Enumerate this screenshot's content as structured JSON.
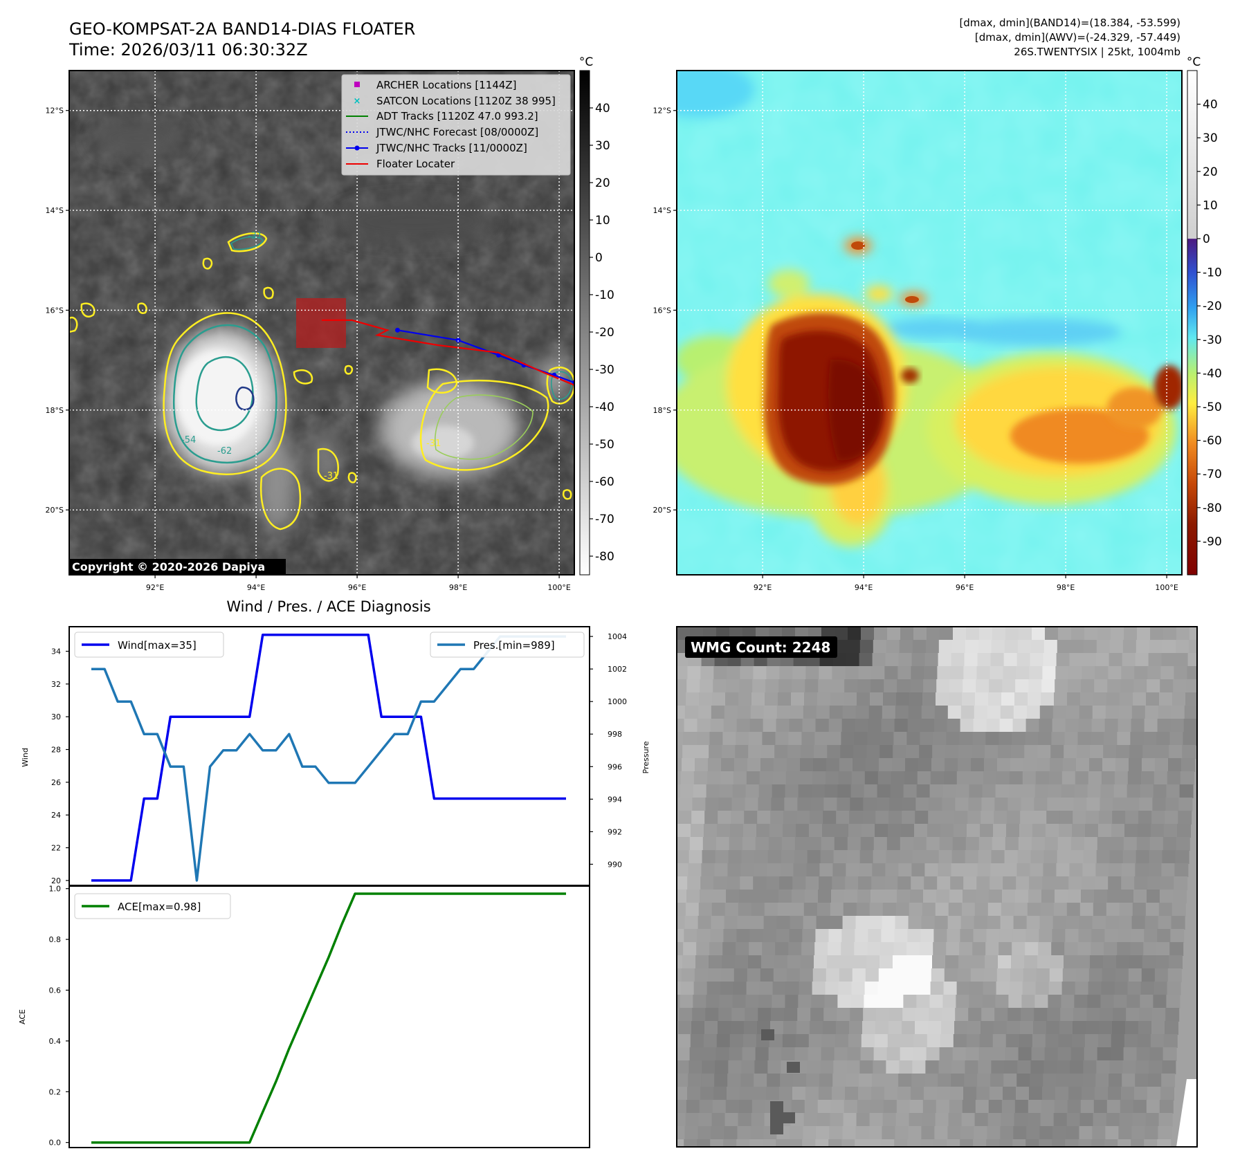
{
  "header": {
    "title_line1": "GEO-KOMPSAT-2A BAND14-DIAS FLOATER",
    "title_line2": "Time: 2026/03/11 06:30:32Z",
    "info_line1": "[dmax, dmin](BAND14)=(18.384, -53.599)",
    "info_line2": "[dmax, dmin](AWV)=(-24.329, -57.449)",
    "info_line3": "26S.TWENTYSIX | 25kt, 1004mb"
  },
  "colors": {
    "wind": "#0000ee",
    "pressure": "#1f77b4",
    "ace": "#008000",
    "floater": "#ee0000",
    "archer": "#bf00bf",
    "satcon": "#00bfbf",
    "contour_yellow": "#ffee22",
    "contour_teal": "#2a9d8f"
  },
  "ir_map": {
    "unit": "°C",
    "lat_labels": [
      "12°S",
      "14°S",
      "16°S",
      "18°S",
      "20°S"
    ],
    "lon_labels": [
      "92°E",
      "94°E",
      "96°E",
      "98°E",
      "100°E"
    ],
    "lat_range": [
      -21.3,
      -11.2
    ],
    "lon_range": [
      90.3,
      100.3
    ],
    "colorbar_ticks": [
      40,
      30,
      20,
      10,
      0,
      -10,
      -20,
      -30,
      -40,
      -50,
      -60,
      -70,
      -80
    ],
    "colorbar_range": [
      -85,
      50
    ],
    "copyright": "Copyright © 2020-2026 Dapiya",
    "contour_labels": [
      "-31",
      "-54",
      "-62",
      "-31",
      "-31"
    ],
    "legend": [
      {
        "label": "ARCHER Locations [1144Z]",
        "icon": "square-marker"
      },
      {
        "label": "SATCON Locations [1120Z 38 995]",
        "icon": "x-marker"
      },
      {
        "label": "ADT Tracks [1120Z 47.0 993.2]",
        "icon": "green-line"
      },
      {
        "label": "JTWC/NHC Forecast [08/0000Z]",
        "icon": "blue-dotted-line"
      },
      {
        "label": "JTWC/NHC Tracks [11/0000Z]",
        "icon": "blue-line-dot"
      },
      {
        "label": "Floater Locater",
        "icon": "red-line"
      }
    ],
    "jtwc_track": [
      [
        96.8,
        -16.4
      ],
      [
        98.0,
        -16.6
      ],
      [
        98.8,
        -16.9
      ],
      [
        99.3,
        -17.1
      ],
      [
        99.9,
        -17.3
      ],
      [
        100.3,
        -17.45
      ]
    ],
    "floater_track": [
      [
        95.3,
        -16.2
      ],
      [
        95.9,
        -16.2
      ],
      [
        96.6,
        -16.4
      ],
      [
        96.4,
        -16.5
      ],
      [
        97.6,
        -16.7
      ],
      [
        98.8,
        -16.85
      ],
      [
        99.7,
        -17.25
      ],
      [
        100.3,
        -17.5
      ]
    ]
  },
  "awv_map": {
    "unit": "°C",
    "lat_labels": [
      "12°S",
      "14°S",
      "16°S",
      "18°S",
      "20°S"
    ],
    "lon_labels": [
      "92°E",
      "94°E",
      "96°E",
      "98°E",
      "100°E"
    ],
    "colorbar_ticks": [
      40,
      30,
      20,
      10,
      0,
      -10,
      -20,
      -30,
      -40,
      -50,
      -60,
      -70,
      -80,
      -90
    ],
    "colorbar_range": [
      -100,
      50
    ]
  },
  "diagnosis": {
    "title": "Wind / Pres. / ACE Diagnosis",
    "wind_ylabel": "Wind",
    "pres_ylabel": "Pressure",
    "ace_ylabel": "ACE",
    "wind_legend": "Wind[max=35]",
    "pres_legend": "Pres.[min=989]",
    "ace_legend": "ACE[max=0.98]",
    "wind_ticks": [
      20,
      22,
      24,
      26,
      28,
      30,
      32,
      34
    ],
    "pres_ticks": [
      990,
      992,
      994,
      996,
      998,
      1000,
      1002,
      1004
    ],
    "ace_ticks": [
      0.0,
      0.2,
      0.4,
      0.6,
      0.8,
      1.0
    ]
  },
  "chart_data": [
    {
      "type": "line",
      "title": "Wind / Pres. / ACE Diagnosis",
      "ylabel": "Wind",
      "ylim": [
        19.7,
        35.5
      ],
      "x": [
        0,
        1,
        2,
        3,
        4,
        5,
        6,
        7,
        8,
        9,
        10,
        11,
        12,
        13,
        14,
        15,
        16,
        17,
        18,
        19,
        20,
        21,
        22,
        23,
        24,
        25,
        26,
        27,
        28,
        29,
        30,
        31,
        32,
        33,
        34,
        35,
        36
      ],
      "series": [
        {
          "name": "Wind[max=35]",
          "values": [
            20,
            20,
            20,
            20,
            25,
            25,
            30,
            30,
            30,
            30,
            30,
            30,
            30,
            35,
            35,
            35,
            35,
            35,
            35,
            35,
            35,
            35,
            30,
            30,
            30,
            30,
            25,
            25,
            25,
            25,
            25,
            25,
            25,
            25,
            25,
            25,
            25
          ]
        }
      ]
    },
    {
      "type": "line",
      "ylabel": "Pressure",
      "ylim": [
        988.7,
        1004.6
      ],
      "x": [
        0,
        1,
        2,
        3,
        4,
        5,
        6,
        7,
        8,
        9,
        10,
        11,
        12,
        13,
        14,
        15,
        16,
        17,
        18,
        19,
        20,
        21,
        22,
        23,
        24,
        25,
        26,
        27,
        28,
        29,
        30,
        31,
        32,
        33,
        34,
        35,
        36
      ],
      "series": [
        {
          "name": "Pres.[min=989]",
          "values": [
            1002,
            1002,
            1000,
            1000,
            998,
            998,
            996,
            996,
            989,
            996,
            997,
            997,
            998,
            997,
            997,
            998,
            996,
            996,
            995,
            995,
            995,
            996,
            997,
            998,
            998,
            1000,
            1000,
            1001,
            1002,
            1002,
            1003,
            1004,
            1004,
            1004,
            1004,
            1004,
            1004
          ]
        }
      ]
    },
    {
      "type": "line",
      "ylabel": "ACE",
      "ylim": [
        -0.02,
        1.01
      ],
      "x": [
        0,
        1,
        2,
        3,
        4,
        5,
        6,
        7,
        8,
        9,
        10,
        11,
        12,
        13,
        14,
        15,
        16,
        17,
        18,
        19,
        20,
        21,
        22,
        23,
        24,
        25,
        26,
        27,
        28,
        29,
        30,
        31,
        32,
        33,
        34,
        35,
        36
      ],
      "series": [
        {
          "name": "ACE[max=0.98]",
          "values": [
            0,
            0,
            0,
            0,
            0,
            0,
            0,
            0,
            0,
            0,
            0,
            0,
            0,
            0.12,
            0.24,
            0.37,
            0.49,
            0.61,
            0.73,
            0.86,
            0.98,
            0.98,
            0.98,
            0.98,
            0.98,
            0.98,
            0.98,
            0.98,
            0.98,
            0.98,
            0.98,
            0.98,
            0.98,
            0.98,
            0.98,
            0.98,
            0.98
          ]
        }
      ]
    }
  ],
  "wmg": {
    "label": "WMG Count: 2248"
  }
}
